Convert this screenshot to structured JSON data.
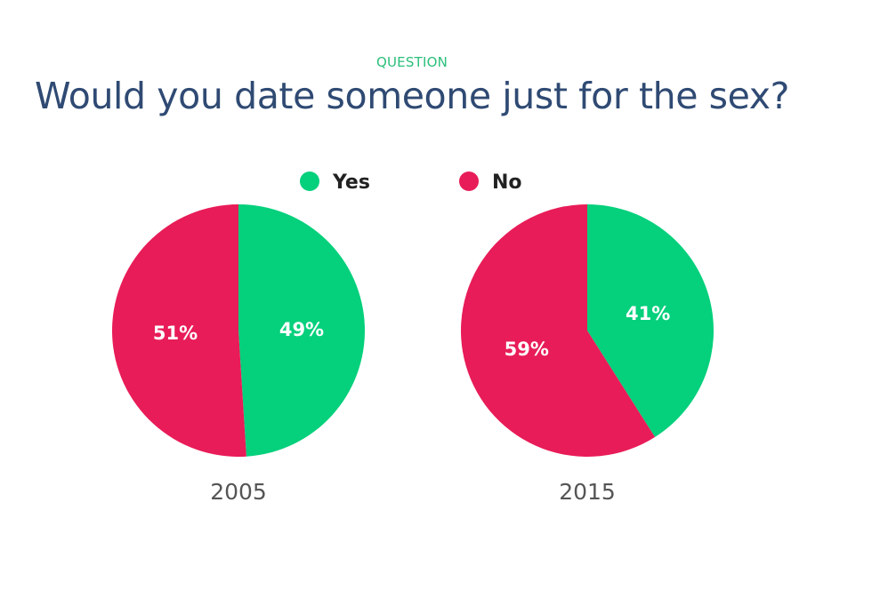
{
  "header": {
    "eyebrow": "QUESTION",
    "title": "Would you date someone just for the sex?"
  },
  "colors": {
    "yes": "#05d07c",
    "no": "#e81c58",
    "label_text": "#ffffff",
    "year_text": "#555555",
    "legend_text": "#222222"
  },
  "chart_data": [
    {
      "type": "pie",
      "title": "",
      "xlabel": "2005",
      "categories": [
        "Yes",
        "No"
      ],
      "values": [
        49,
        51
      ],
      "labels": [
        "49%",
        "51%"
      ],
      "legend": "top"
    },
    {
      "type": "pie",
      "title": "",
      "xlabel": "2015",
      "categories": [
        "Yes",
        "No"
      ],
      "values": [
        41,
        59
      ],
      "labels": [
        "41%",
        "59%"
      ],
      "legend": "top"
    }
  ]
}
